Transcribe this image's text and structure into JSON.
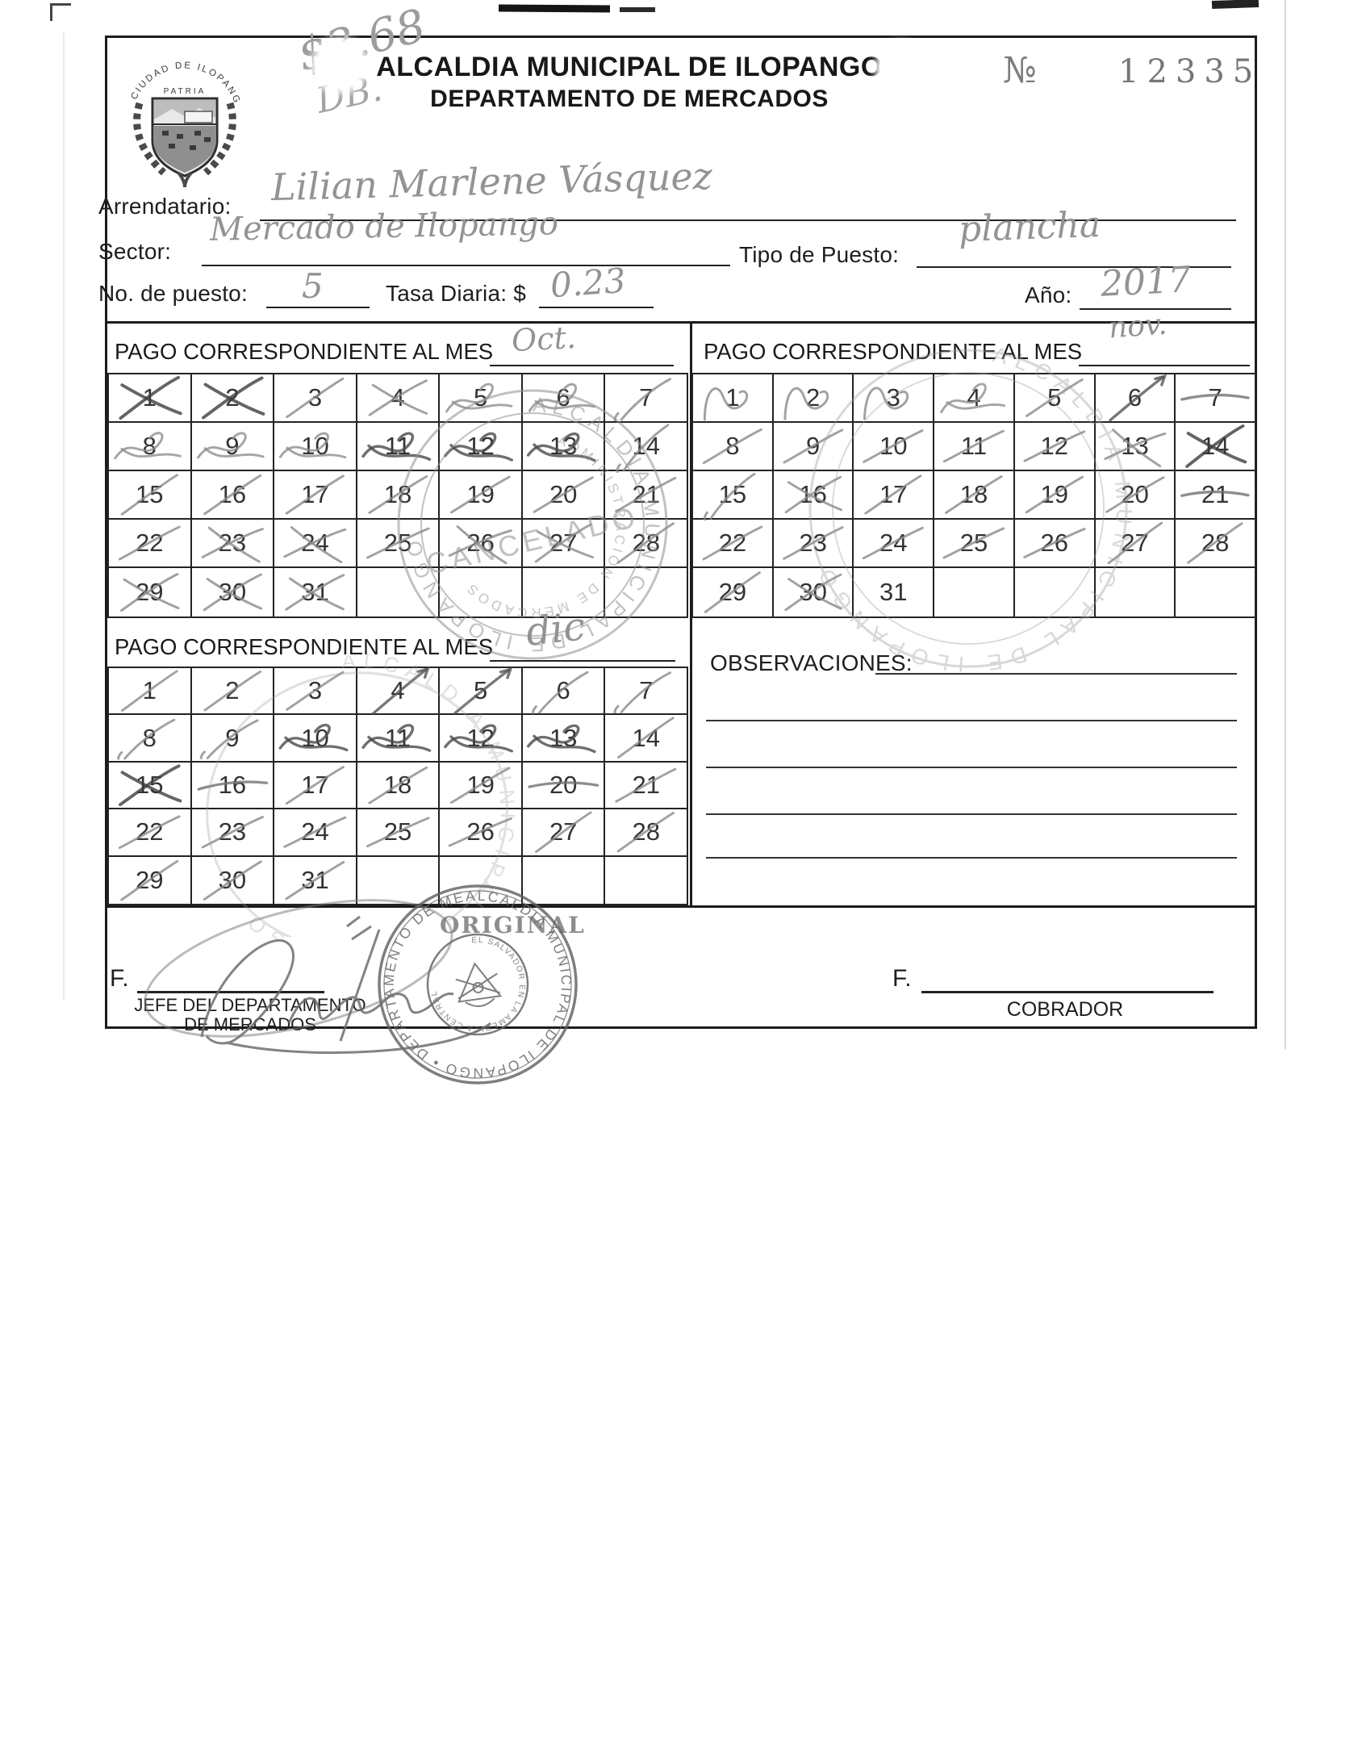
{
  "header": {
    "handwritten_amount": "$3.68",
    "handwritten_initials": "DB.",
    "title": "ALCALDIA MUNICIPAL DE ILOPANGO",
    "subtitle": "DEPARTAMENTO DE MERCADOS",
    "number_label": "№",
    "number_value": "12335"
  },
  "logo": {
    "arc_text": "CIUDAD DE ILOPANGO",
    "motto": "PATRIA"
  },
  "fields": {
    "arrendatario": {
      "label": "Arrendatario:",
      "value": "Lilian Marlene Vásquez"
    },
    "sector": {
      "label": "Sector:",
      "value": "Mercado de Ilopango"
    },
    "tipo_puesto": {
      "label": "Tipo de Puesto:",
      "value": "plancha"
    },
    "no_puesto": {
      "label": "No. de puesto:",
      "value": "5"
    },
    "tasa_diaria": {
      "label": "Tasa Diaria: $",
      "value": "0.23"
    },
    "anio": {
      "label": "Año:",
      "value": "2017"
    }
  },
  "calendars": [
    {
      "name": "octubre",
      "title": "PAGO CORRESPONDIENTE AL MES",
      "month_written": "Oct.",
      "days": 31,
      "marks": [
        "xdark",
        "xdark",
        "slash",
        "x",
        "scribble",
        "scribble",
        "slash2",
        "scribble",
        "scribble",
        "scribble",
        "scribbleD",
        "scribbleD",
        "scribbleD",
        "slash2",
        "slash",
        "slash",
        "slash",
        "slash",
        "slash",
        "slash",
        "slash",
        "slash",
        "x",
        "x",
        "slash",
        "x",
        "x",
        "slash",
        "x",
        "x",
        "x"
      ]
    },
    {
      "name": "noviembre",
      "title": "PAGO CORRESPONDIENTE AL MES",
      "month_written": "nov.",
      "days": 31,
      "marks": [
        "arc",
        "arc",
        "arc",
        "scribble",
        "slash",
        "arrow",
        "strike",
        "slash",
        "slash",
        "slash",
        "slash",
        "slash",
        "x",
        "xdark",
        "slash2",
        "x",
        "slash",
        "slash",
        "slash",
        "slash",
        "strike",
        "slash",
        "slash",
        "slash",
        "slash",
        "slash",
        "slash",
        "slash",
        "slash",
        "x",
        "none"
      ]
    },
    {
      "name": "diciembre",
      "title": "PAGO CORRESPONDIENTE AL MES",
      "month_written": "dic",
      "days": 31,
      "marks": [
        "slash",
        "slash",
        "slash",
        "arrow",
        "arrow",
        "slash2",
        "slash2",
        "slash2",
        "slash2",
        "scribbleD",
        "scribbleD",
        "scribbleD",
        "scribbleD",
        "slash",
        "xdark",
        "strike",
        "slash",
        "slash",
        "slash",
        "strike",
        "slash",
        "slash",
        "slash",
        "slash",
        "slash",
        "slash",
        "slash",
        "slash",
        "slash",
        "slash",
        "slash"
      ]
    }
  ],
  "observations": {
    "label": "OBSERVACIONES:"
  },
  "footer": {
    "original_label": "ORIGINAL",
    "signature_prefix": "F.",
    "left_role_line1": "JEFE DEL DEPARTAMENTO",
    "left_role_line2": "DE MERCADOS",
    "right_role": "COBRADOR"
  },
  "stamps": {
    "cancelado": {
      "ring_text": "ALCALDIA MUNICIPAL DE ILOPANGO",
      "inner_text": "ADMINISTRACION DE MERCADOS",
      "center_text": "CANCELADO"
    },
    "seal": {
      "ring_text": "ALCALDIA MUNICIPAL DE ILOPANGO • DEPARTAMENTO DE MERCADOS •",
      "coat_ring_text": "EL SALVADOR EN LA AMERICA CENTRAL"
    }
  }
}
